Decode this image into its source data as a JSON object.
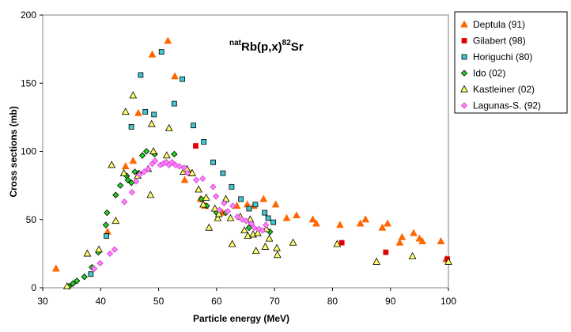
{
  "chart_data": {
    "type": "scatter",
    "title": {
      "sup1": "nat",
      "main1": "Rb(p,x)",
      "sup2": "82",
      "main2": "Sr"
    },
    "xlabel": "Particle energy (MeV)",
    "ylabel": "Cross sections (mb)",
    "xlim": [
      30,
      100
    ],
    "ylim": [
      0,
      200
    ],
    "xticks": [
      30,
      40,
      50,
      60,
      70,
      80,
      90,
      100
    ],
    "yticks": [
      0,
      50,
      100,
      150,
      200
    ],
    "legend_position": "top-right",
    "series": [
      {
        "name": "Deptula (91)",
        "marker": "triangle",
        "color": "#ff6600",
        "stroke": "#ff6600",
        "points": [
          [
            32.3,
            14
          ],
          [
            41.2,
            41
          ],
          [
            44.3,
            89
          ],
          [
            45.6,
            93
          ],
          [
            46.5,
            128
          ],
          [
            48.9,
            171
          ],
          [
            51.6,
            181
          ],
          [
            52.8,
            155
          ],
          [
            54.5,
            79
          ],
          [
            55.7,
            84
          ],
          [
            57.2,
            65
          ],
          [
            58.0,
            60
          ],
          [
            61.0,
            55
          ],
          [
            63.5,
            60
          ],
          [
            65.3,
            61
          ],
          [
            66.4,
            60
          ],
          [
            68.1,
            65
          ],
          [
            70.2,
            61
          ],
          [
            72.1,
            51
          ],
          [
            73.8,
            53
          ],
          [
            76.6,
            50
          ],
          [
            77.2,
            47
          ],
          [
            81.3,
            46
          ],
          [
            84.8,
            47
          ],
          [
            85.7,
            50
          ],
          [
            88.6,
            44
          ],
          [
            89.5,
            47
          ],
          [
            91.6,
            33
          ],
          [
            92.0,
            37
          ],
          [
            94.0,
            40
          ],
          [
            95.0,
            36
          ],
          [
            95.5,
            34
          ],
          [
            98.7,
            34
          ],
          [
            99.6,
            21
          ]
        ]
      },
      {
        "name": "Gilabert (98)",
        "marker": "square",
        "color": "#e00000",
        "stroke": "#e00000",
        "points": [
          [
            56.4,
            104
          ],
          [
            81.6,
            33
          ],
          [
            89.2,
            26
          ],
          [
            99.8,
            21
          ]
        ]
      },
      {
        "name": "Horiguchi (80)",
        "marker": "square",
        "color": "#40c8d0",
        "stroke": "#000000",
        "points": [
          [
            38.3,
            10
          ],
          [
            41.0,
            38
          ],
          [
            45.3,
            118
          ],
          [
            46.9,
            156
          ],
          [
            47.7,
            129
          ],
          [
            49.2,
            127
          ],
          [
            50.5,
            173
          ],
          [
            52.7,
            135
          ],
          [
            54.1,
            153
          ],
          [
            56.0,
            119
          ],
          [
            57.8,
            107
          ],
          [
            59.4,
            92
          ],
          [
            61.1,
            84
          ],
          [
            62.6,
            74
          ],
          [
            64.2,
            65
          ],
          [
            65.6,
            58
          ],
          [
            66.7,
            61
          ],
          [
            68.3,
            55
          ],
          [
            68.9,
            51
          ],
          [
            69.8,
            48
          ]
        ]
      },
      {
        "name": "Ido (02)",
        "marker": "diamond",
        "color": "#22d422",
        "stroke": "#000000",
        "points": [
          [
            34.5,
            1
          ],
          [
            35.2,
            3
          ],
          [
            35.9,
            5
          ],
          [
            37.2,
            8
          ],
          [
            38.5,
            15
          ],
          [
            39.6,
            26
          ],
          [
            40.9,
            46
          ],
          [
            41.1,
            55
          ],
          [
            42.6,
            68
          ],
          [
            43.4,
            75
          ],
          [
            44.5,
            82
          ],
          [
            44.7,
            79
          ],
          [
            45.3,
            77
          ],
          [
            45.9,
            85
          ],
          [
            46.6,
            84
          ],
          [
            47.2,
            97
          ],
          [
            47.9,
            100
          ],
          [
            49.3,
            98
          ],
          [
            51.3,
            92
          ],
          [
            52.7,
            98
          ],
          [
            54.9,
            85
          ],
          [
            57.4,
            65
          ],
          [
            58.3,
            60
          ],
          [
            60.0,
            55
          ],
          [
            61.6,
            55
          ],
          [
            65.6,
            44
          ],
          [
            69.2,
            41
          ]
        ]
      },
      {
        "name": "Kastleiner (02)",
        "marker": "triangle",
        "color": "#ffff66",
        "stroke": "#000000",
        "points": [
          [
            34.2,
            1
          ],
          [
            37.7,
            25
          ],
          [
            39.7,
            28
          ],
          [
            41.9,
            90
          ],
          [
            42.6,
            49
          ],
          [
            44.0,
            84
          ],
          [
            44.3,
            129
          ],
          [
            45.6,
            141
          ],
          [
            46.4,
            82
          ],
          [
            48.2,
            87
          ],
          [
            48.6,
            68
          ],
          [
            48.8,
            120
          ],
          [
            49.1,
            100
          ],
          [
            51.4,
            97
          ],
          [
            51.8,
            117
          ],
          [
            54.3,
            85
          ],
          [
            54.9,
            87
          ],
          [
            55.8,
            84
          ],
          [
            56.9,
            72
          ],
          [
            57.7,
            61
          ],
          [
            58.2,
            66
          ],
          [
            58.7,
            44
          ],
          [
            59.7,
            58
          ],
          [
            60.2,
            51
          ],
          [
            60.4,
            54
          ],
          [
            61.6,
            65
          ],
          [
            62.4,
            51
          ],
          [
            62.7,
            32
          ],
          [
            64.1,
            52
          ],
          [
            64.8,
            42
          ],
          [
            65.4,
            38
          ],
          [
            65.8,
            50
          ],
          [
            66.3,
            39
          ],
          [
            66.8,
            27
          ],
          [
            67.1,
            40
          ],
          [
            68.4,
            30
          ],
          [
            68.6,
            43
          ],
          [
            69.1,
            36
          ],
          [
            70.4,
            29
          ],
          [
            70.5,
            24
          ],
          [
            73.2,
            33
          ],
          [
            80.8,
            32
          ],
          [
            87.6,
            19
          ],
          [
            93.8,
            23
          ],
          [
            100.0,
            19
          ]
        ]
      },
      {
        "name": "Lagunas-S. (92)",
        "marker": "diamond",
        "color": "#ff7fff",
        "stroke": "#cc44cc",
        "points": [
          [
            38.9,
            14
          ],
          [
            39.9,
            18
          ],
          [
            41.6,
            25
          ],
          [
            42.4,
            28
          ],
          [
            44.1,
            63
          ],
          [
            45.4,
            70
          ],
          [
            46.1,
            78
          ],
          [
            46.7,
            83
          ],
          [
            47.5,
            85
          ],
          [
            48.2,
            87
          ],
          [
            48.9,
            91
          ],
          [
            49.4,
            93
          ],
          [
            50.3,
            90
          ],
          [
            50.8,
            91
          ],
          [
            51.3,
            92
          ],
          [
            51.8,
            90
          ],
          [
            52.3,
            92
          ],
          [
            52.9,
            90
          ],
          [
            53.6,
            89
          ],
          [
            54.4,
            88
          ],
          [
            55.0,
            84
          ],
          [
            56.5,
            79
          ],
          [
            57.6,
            80
          ],
          [
            59.4,
            74
          ],
          [
            59.9,
            67
          ],
          [
            60.5,
            57
          ],
          [
            61.3,
            62
          ],
          [
            61.9,
            56
          ],
          [
            62.8,
            60
          ],
          [
            63.6,
            52
          ],
          [
            64.4,
            50
          ],
          [
            65.1,
            49
          ],
          [
            66.0,
            47
          ],
          [
            66.5,
            44
          ],
          [
            67.3,
            43
          ],
          [
            67.9,
            42
          ],
          [
            68.5,
            46
          ]
        ]
      }
    ]
  }
}
